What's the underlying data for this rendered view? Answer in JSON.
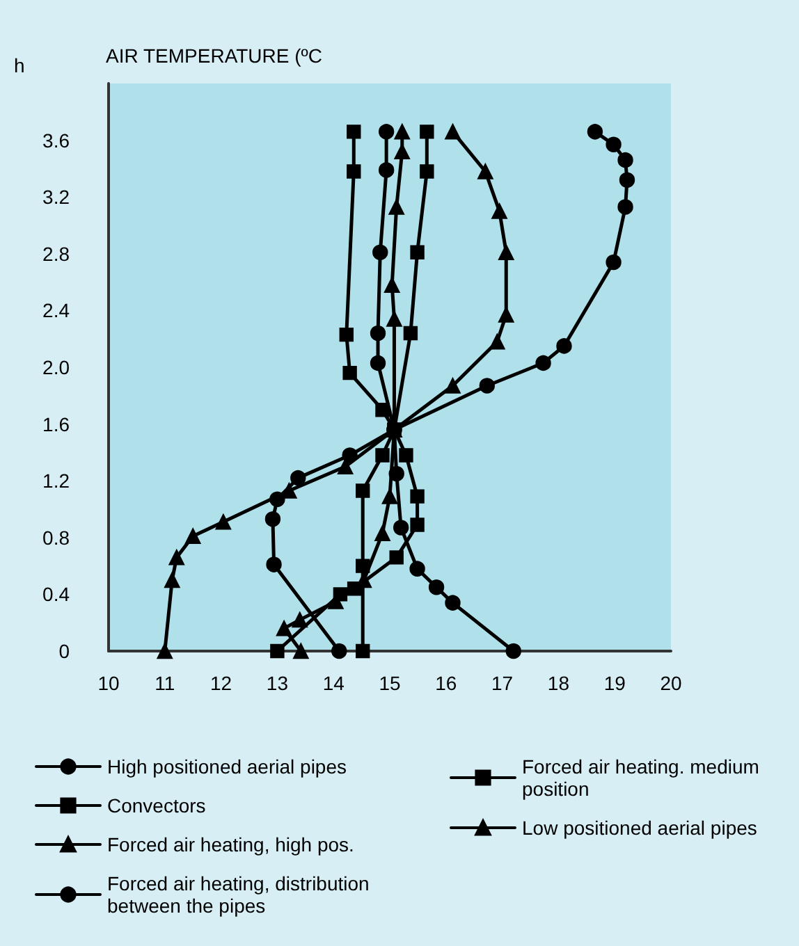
{
  "chart_data": {
    "type": "line",
    "xlabel": "AIR TEMPERATURE (ºC",
    "ylabel": "h",
    "xlim": [
      10,
      20
    ],
    "ylim": [
      0,
      4
    ],
    "xticks": [
      10,
      11,
      12,
      13,
      14,
      15,
      16,
      17,
      18,
      19,
      20
    ],
    "yticks": [
      0,
      0.4,
      0.8,
      1.2,
      1.6,
      {
        "value": 2,
        "label": "2.0"
      },
      2.4,
      2.8,
      3.2,
      3.6
    ],
    "grid": false,
    "legend": "bottom",
    "line_style": "solid",
    "series": [
      {
        "name": "High positioned aerial pipes",
        "color": "#000000",
        "marker": "circle",
        "x": [
          14.1,
          12.94,
          12.92,
          13.0,
          13.37,
          14.29,
          15.08,
          16.73,
          17.73,
          18.1,
          18.98,
          19.19,
          19.22,
          19.19,
          18.98,
          18.65
        ],
        "values": [
          0,
          0.61,
          0.93,
          1.07,
          1.22,
          1.38,
          1.56,
          1.87,
          2.03,
          2.15,
          2.74,
          3.13,
          3.32,
          3.46,
          3.57,
          3.66
        ]
      },
      {
        "name": "Convectors",
        "color": "#000000",
        "marker": "square",
        "x": [
          14.52,
          14.52,
          14.52,
          14.87,
          15.08,
          15.37,
          15.49,
          15.66,
          15.66
        ],
        "values": [
          0,
          0.6,
          1.13,
          1.38,
          1.56,
          2.24,
          2.81,
          3.38,
          3.66
        ]
      },
      {
        "name": "Forced air heating, high pos.",
        "color": "#000000",
        "marker": "triangle",
        "x": [
          11.0,
          11.13,
          11.21,
          11.5,
          12.04,
          13.21,
          14.21,
          15.08,
          16.12,
          16.91,
          17.07,
          17.07,
          16.95,
          16.7,
          16.12
        ],
        "values": [
          0,
          0.5,
          0.66,
          0.81,
          0.91,
          1.13,
          1.3,
          1.56,
          1.87,
          2.18,
          2.37,
          2.81,
          3.1,
          3.38,
          3.66
        ]
      },
      {
        "name": "Forced air heating, distribution between the pipes",
        "color": "#000000",
        "marker": "circle",
        "x": [
          17.2,
          16.12,
          15.83,
          15.49,
          15.2,
          15.12,
          15.08,
          14.79,
          14.79,
          14.83,
          14.94,
          14.94
        ],
        "values": [
          0,
          0.34,
          0.45,
          0.58,
          0.87,
          1.25,
          1.56,
          2.03,
          2.24,
          2.81,
          3.39,
          3.66
        ]
      },
      {
        "name": "Forced air heating. medium position",
        "color": "#000000",
        "marker": "square",
        "x": [
          13.0,
          14.12,
          14.37,
          15.12,
          15.49,
          15.49,
          15.29,
          15.08,
          14.87,
          14.29,
          14.23,
          14.36,
          14.36
        ],
        "values": [
          0,
          0.4,
          0.44,
          0.66,
          0.89,
          1.09,
          1.38,
          1.56,
          1.7,
          1.96,
          2.23,
          3.38,
          3.66
        ]
      },
      {
        "name": "Low positioned aerial pipes",
        "color": "#000000",
        "marker": "triangle",
        "x": [
          13.42,
          13.12,
          13.4,
          14.04,
          14.54,
          14.87,
          15.0,
          15.08,
          15.08,
          15.04,
          15.12,
          15.22,
          15.22
        ],
        "values": [
          0,
          0.16,
          0.22,
          0.35,
          0.5,
          0.83,
          1.09,
          1.56,
          2.34,
          2.58,
          3.13,
          3.52,
          3.66
        ]
      }
    ]
  }
}
